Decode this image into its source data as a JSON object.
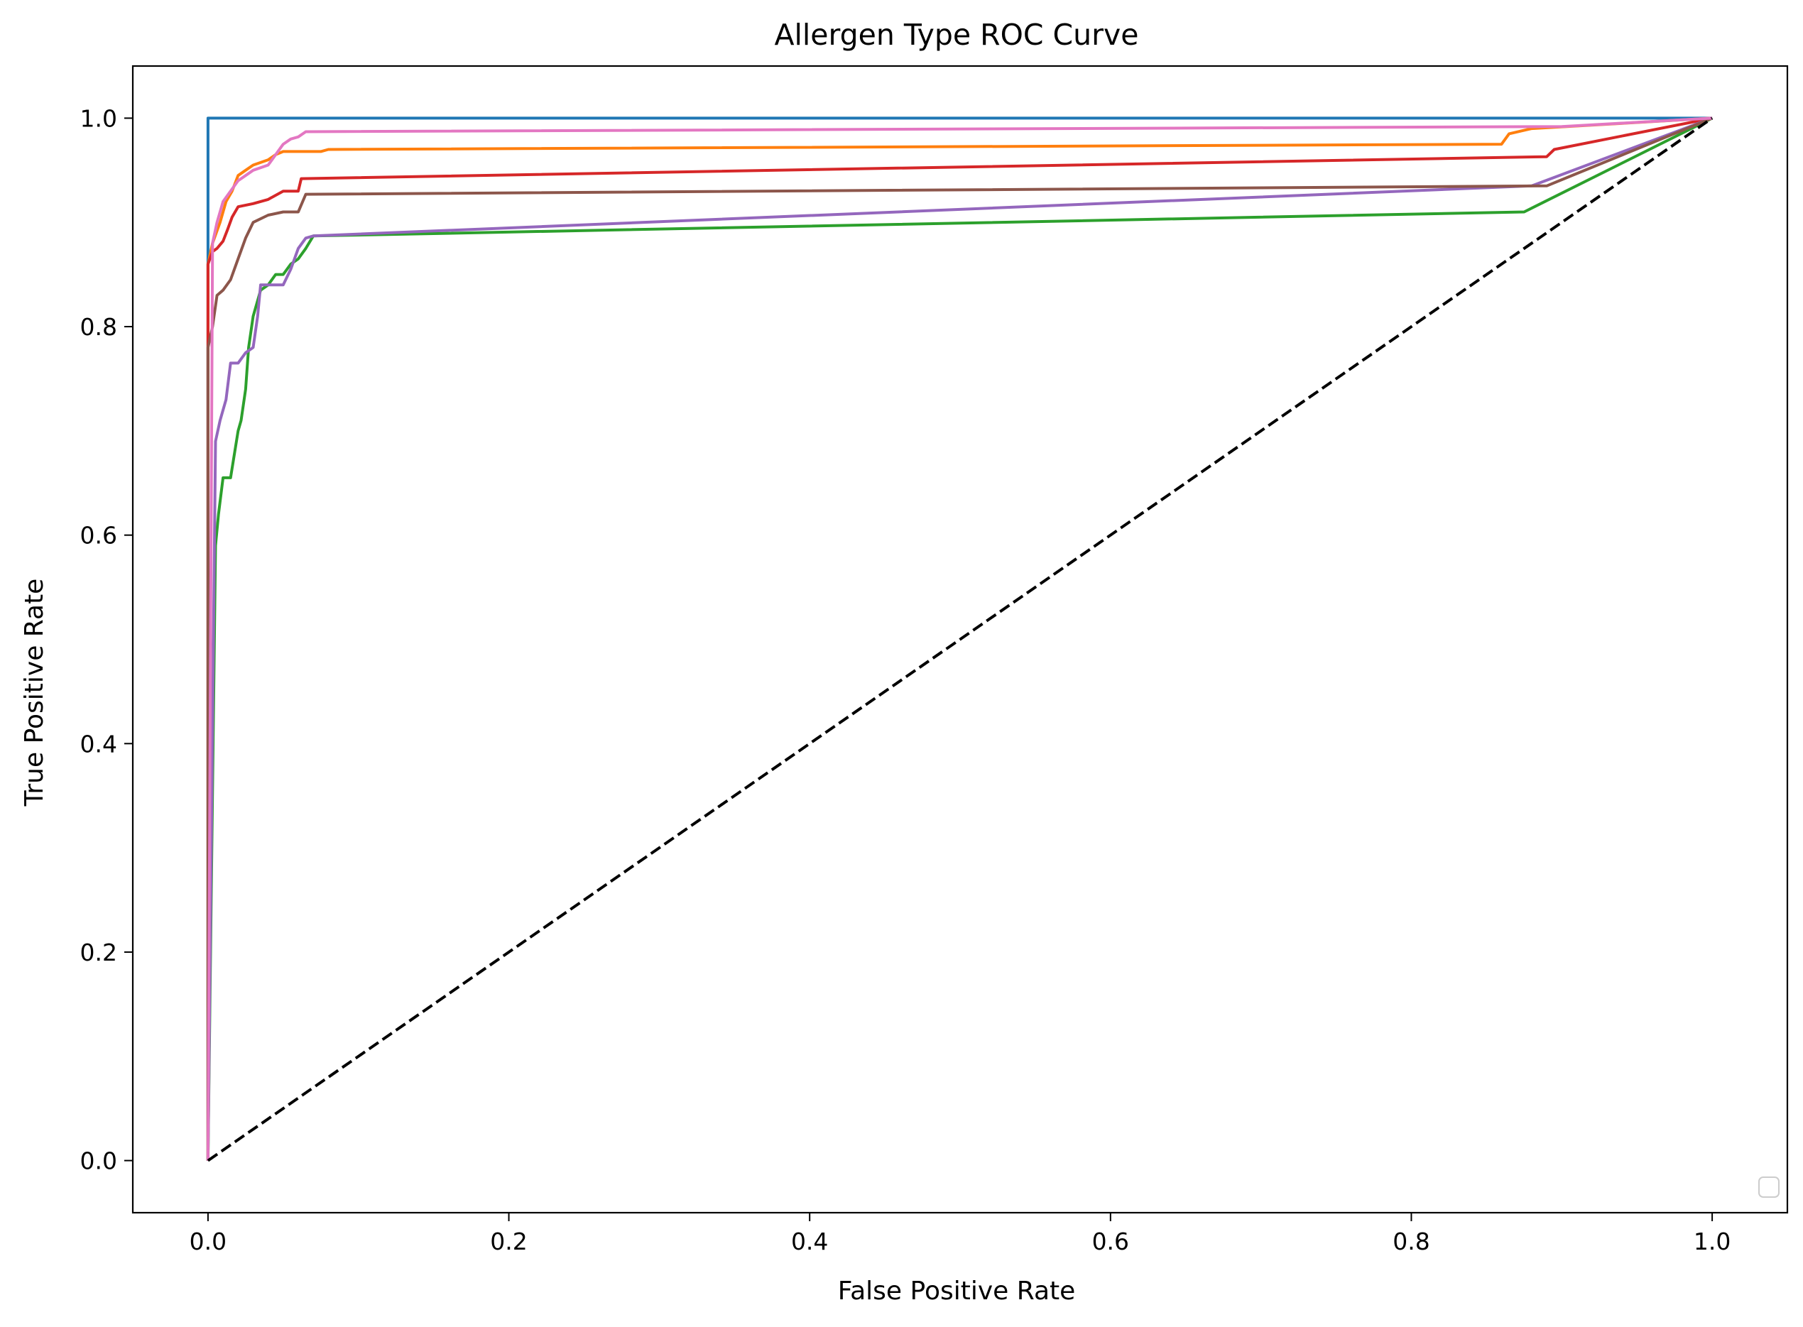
{
  "chart_data": {
    "type": "line",
    "title": "Allergen Type ROC Curve",
    "xlabel": "False Positive Rate",
    "ylabel": "True Positive Rate",
    "xlim": [
      -0.05,
      1.05
    ],
    "ylim": [
      -0.05,
      1.05
    ],
    "xticks": [
      0.0,
      0.2,
      0.4,
      0.6,
      0.8,
      1.0
    ],
    "yticks": [
      0.0,
      0.2,
      0.4,
      0.6,
      0.8,
      1.0
    ],
    "xtick_labels": [
      "0.0",
      "0.2",
      "0.4",
      "0.6",
      "0.8",
      "1.0"
    ],
    "ytick_labels": [
      "0.0",
      "0.2",
      "0.4",
      "0.6",
      "0.8",
      "1.0"
    ],
    "grid": false,
    "legend": {
      "placement": "lower right",
      "entries": []
    },
    "series": [
      {
        "color": "#1f77b4",
        "x": [
          0.0,
          0.0,
          1.0
        ],
        "y": [
          0.0,
          1.0,
          1.0
        ]
      },
      {
        "color": "#ff7f0e",
        "x": [
          0.0,
          0.0,
          0.003,
          0.008,
          0.012,
          0.016,
          0.02,
          0.025,
          0.03,
          0.04,
          0.045,
          0.05,
          0.075,
          0.08,
          0.86,
          0.865,
          0.88,
          1.0
        ],
        "y": [
          0.0,
          0.86,
          0.88,
          0.9,
          0.92,
          0.93,
          0.945,
          0.95,
          0.955,
          0.96,
          0.965,
          0.968,
          0.968,
          0.97,
          0.975,
          0.985,
          0.99,
          1.0
        ]
      },
      {
        "color": "#2ca02c",
        "x": [
          0.0,
          0.005,
          0.007,
          0.01,
          0.015,
          0.02,
          0.022,
          0.025,
          0.027,
          0.03,
          0.035,
          0.04,
          0.045,
          0.05,
          0.055,
          0.06,
          0.065,
          0.07,
          0.875,
          1.0
        ],
        "y": [
          0.0,
          0.59,
          0.62,
          0.655,
          0.655,
          0.7,
          0.71,
          0.74,
          0.78,
          0.81,
          0.835,
          0.84,
          0.85,
          0.85,
          0.86,
          0.865,
          0.875,
          0.887,
          0.91,
          1.0
        ]
      },
      {
        "color": "#d62728",
        "x": [
          0.0,
          0.0,
          0.003,
          0.006,
          0.01,
          0.013,
          0.016,
          0.02,
          0.03,
          0.04,
          0.05,
          0.06,
          0.062,
          0.89,
          0.895,
          1.0
        ],
        "y": [
          0.0,
          0.86,
          0.872,
          0.875,
          0.882,
          0.893,
          0.905,
          0.915,
          0.918,
          0.922,
          0.93,
          0.93,
          0.942,
          0.963,
          0.97,
          1.0
        ]
      },
      {
        "color": "#9467bd",
        "x": [
          0.0,
          0.005,
          0.008,
          0.012,
          0.015,
          0.02,
          0.025,
          0.03,
          0.033,
          0.035,
          0.04,
          0.05,
          0.055,
          0.06,
          0.065,
          0.07,
          0.88,
          1.0
        ],
        "y": [
          0.0,
          0.69,
          0.71,
          0.73,
          0.765,
          0.765,
          0.775,
          0.78,
          0.81,
          0.84,
          0.84,
          0.84,
          0.855,
          0.875,
          0.885,
          0.887,
          0.935,
          1.0
        ]
      },
      {
        "color": "#8c564b",
        "x": [
          0.0,
          0.0,
          0.003,
          0.006,
          0.01,
          0.015,
          0.02,
          0.025,
          0.03,
          0.04,
          0.05,
          0.06,
          0.065,
          0.89,
          1.0
        ],
        "y": [
          0.0,
          0.78,
          0.8,
          0.83,
          0.835,
          0.845,
          0.865,
          0.885,
          0.9,
          0.907,
          0.91,
          0.91,
          0.927,
          0.935,
          1.0
        ]
      },
      {
        "color": "#e377c2",
        "x": [
          0.0,
          0.0,
          0.003,
          0.006,
          0.01,
          0.015,
          0.02,
          0.025,
          0.03,
          0.04,
          0.045,
          0.05,
          0.055,
          0.06,
          0.065,
          0.9,
          1.0
        ],
        "y": [
          0.0,
          0.0,
          0.88,
          0.9,
          0.92,
          0.93,
          0.94,
          0.945,
          0.95,
          0.955,
          0.965,
          0.975,
          0.98,
          0.982,
          0.987,
          0.992,
          1.0
        ]
      },
      {
        "color": "#000000",
        "dashed": true,
        "x": [
          0.0,
          1.0
        ],
        "y": [
          0.0,
          1.0
        ]
      }
    ]
  }
}
